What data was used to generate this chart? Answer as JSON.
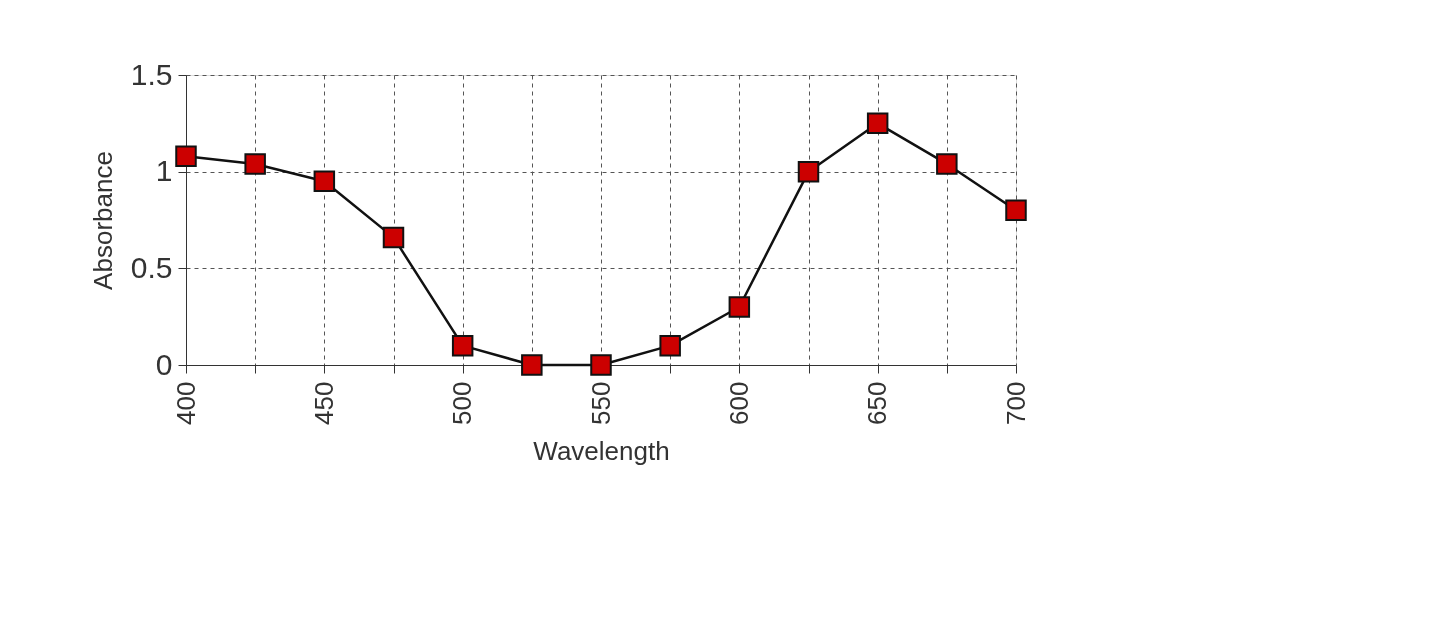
{
  "chart_data": {
    "type": "line",
    "xlabel": "Wavelength",
    "ylabel": "Absorbance",
    "x": [
      400,
      425,
      450,
      475,
      500,
      525,
      550,
      575,
      600,
      625,
      650,
      675,
      700
    ],
    "series": [
      {
        "color": "#cc0000",
        "values": [
          1.08,
          1.04,
          0.95,
          0.66,
          0.1,
          0,
          0,
          0.1,
          0.3,
          1.0,
          1.25,
          1.04,
          0.8
        ]
      }
    ],
    "xlim": [
      400,
      700
    ],
    "xticks": [
      400,
      {
        "value": 425,
        "label": null
      },
      450,
      {
        "value": 475,
        "label": null
      },
      500,
      {
        "value": 525,
        "label": null
      },
      550,
      {
        "value": 575,
        "label": null
      },
      600,
      {
        "value": 625,
        "label": null
      },
      650,
      {
        "value": 675,
        "label": null
      },
      700
    ],
    "ylim": [
      0,
      1.5
    ],
    "yticks": [
      0,
      0.5,
      1,
      1.5
    ],
    "grid": true,
    "marker": "square",
    "line_style": "solid"
  }
}
